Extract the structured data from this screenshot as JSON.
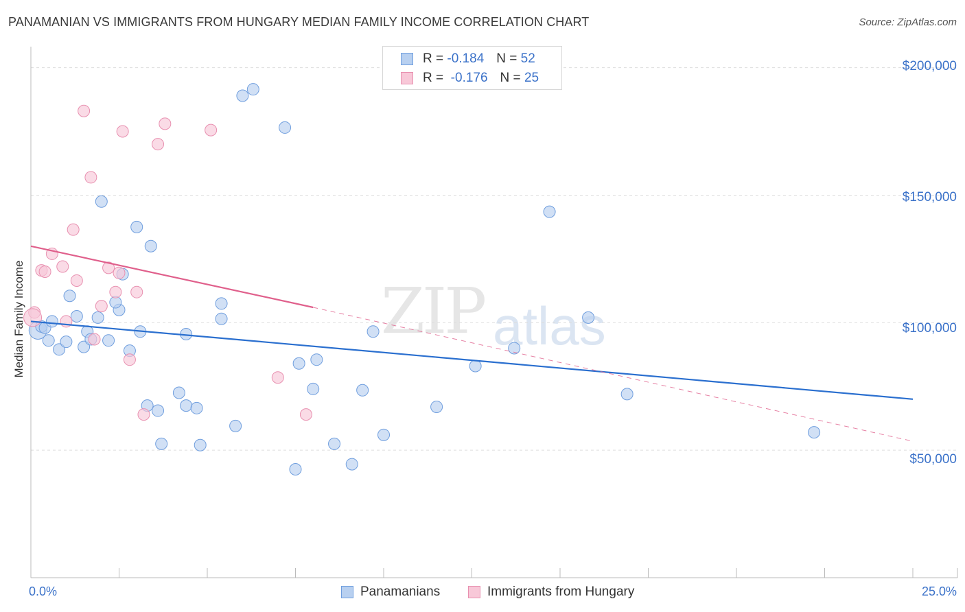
{
  "title": "PANAMANIAN VS IMMIGRANTS FROM HUNGARY MEDIAN FAMILY INCOME CORRELATION CHART",
  "source": "Source: ZipAtlas.com",
  "watermark": {
    "zip": "ZIP",
    "atlas": "atlas"
  },
  "legend": {
    "r_label": "R =",
    "n_label": "N =",
    "series": [
      {
        "r": "-0.184",
        "n": "52"
      },
      {
        "r": "-0.176",
        "n": "25"
      }
    ]
  },
  "colors": {
    "blue_fill": "#b8d0f0",
    "blue_stroke": "#6f9ede",
    "blue_line": "#2a6fcf",
    "pink_fill": "#f8c8d8",
    "pink_stroke": "#e890b0",
    "pink_line": "#e0608c",
    "grid": "#dddddd",
    "tick_text": "#3b72c9"
  },
  "chart_data": {
    "type": "scatter",
    "title": "PANAMANIAN VS IMMIGRANTS FROM HUNGARY MEDIAN FAMILY INCOME CORRELATION CHART",
    "xlabel": "",
    "ylabel": "Median Family Income",
    "xlim": [
      0,
      25
    ],
    "ylim": [
      0,
      205000
    ],
    "x_tick_labels": [
      "0.0%",
      "25.0%"
    ],
    "y_ticks": [
      {
        "value": 50000,
        "label": "$50,000"
      },
      {
        "value": 100000,
        "label": "$100,000"
      },
      {
        "value": 150000,
        "label": "$150,000"
      },
      {
        "value": 200000,
        "label": "$200,000"
      }
    ],
    "series": [
      {
        "name": "Panamanians",
        "color": "#6f9ede",
        "points": [
          [
            0.2,
            97000
          ],
          [
            0.3,
            98500
          ],
          [
            0.4,
            98000
          ],
          [
            0.5,
            93000
          ],
          [
            0.6,
            100500
          ],
          [
            0.8,
            89500
          ],
          [
            1.0,
            92500
          ],
          [
            1.1,
            110500
          ],
          [
            1.3,
            102500
          ],
          [
            1.5,
            90500
          ],
          [
            1.6,
            96500
          ],
          [
            1.7,
            93500
          ],
          [
            1.9,
            102000
          ],
          [
            2.0,
            147500
          ],
          [
            2.2,
            93000
          ],
          [
            2.5,
            105000
          ],
          [
            2.4,
            108000
          ],
          [
            2.6,
            119000
          ],
          [
            2.8,
            89000
          ],
          [
            3.0,
            137500
          ],
          [
            3.1,
            96500
          ],
          [
            3.4,
            130000
          ],
          [
            3.3,
            67500
          ],
          [
            3.6,
            65500
          ],
          [
            3.7,
            52500
          ],
          [
            4.2,
            72500
          ],
          [
            4.4,
            95500
          ],
          [
            4.4,
            67500
          ],
          [
            4.7,
            66500
          ],
          [
            4.8,
            52000
          ],
          [
            5.4,
            107500
          ],
          [
            5.4,
            101500
          ],
          [
            5.8,
            59500
          ],
          [
            6.0,
            189000
          ],
          [
            6.3,
            191500
          ],
          [
            7.2,
            176500
          ],
          [
            7.5,
            42500
          ],
          [
            7.6,
            84000
          ],
          [
            8.0,
            74000
          ],
          [
            8.1,
            85500
          ],
          [
            8.6,
            52500
          ],
          [
            9.1,
            44500
          ],
          [
            9.4,
            73500
          ],
          [
            9.7,
            96500
          ],
          [
            10.0,
            56000
          ],
          [
            11.5,
            67000
          ],
          [
            12.6,
            83000
          ],
          [
            13.7,
            90000
          ],
          [
            14.7,
            143500
          ],
          [
            15.8,
            102000
          ],
          [
            16.9,
            72000
          ],
          [
            22.2,
            57000
          ]
        ]
      },
      {
        "name": "Immigrants from Hungary",
        "color": "#e890b0",
        "points": [
          [
            0.1,
            104000
          ],
          [
            0.3,
            120500
          ],
          [
            0.4,
            120000
          ],
          [
            0.6,
            127000
          ],
          [
            0.9,
            122000
          ],
          [
            1.0,
            100500
          ],
          [
            1.3,
            116500
          ],
          [
            1.2,
            136500
          ],
          [
            1.5,
            183000
          ],
          [
            1.7,
            157000
          ],
          [
            1.8,
            93500
          ],
          [
            2.0,
            106500
          ],
          [
            2.2,
            121500
          ],
          [
            2.4,
            112000
          ],
          [
            2.5,
            119500
          ],
          [
            2.6,
            175000
          ],
          [
            2.8,
            85500
          ],
          [
            3.0,
            112000
          ],
          [
            3.2,
            64000
          ],
          [
            3.6,
            170000
          ],
          [
            3.8,
            178000
          ],
          [
            5.1,
            175500
          ],
          [
            7.0,
            78500
          ],
          [
            7.8,
            64000
          ],
          [
            0.05,
            102000
          ]
        ]
      }
    ],
    "trend_lines": [
      {
        "series": "Panamanians",
        "x0": 0,
        "y0": 100500,
        "x1": 25,
        "y1": 70000,
        "style": "solid"
      },
      {
        "series": "Immigrants from Hungary",
        "x0": 0,
        "y0": 130000,
        "x1": 8,
        "y1": 106000,
        "style": "solid"
      },
      {
        "series": "Immigrants from Hungary",
        "x0": 8,
        "y0": 106000,
        "x1": 25,
        "y1": 53500,
        "style": "dashed"
      }
    ]
  }
}
